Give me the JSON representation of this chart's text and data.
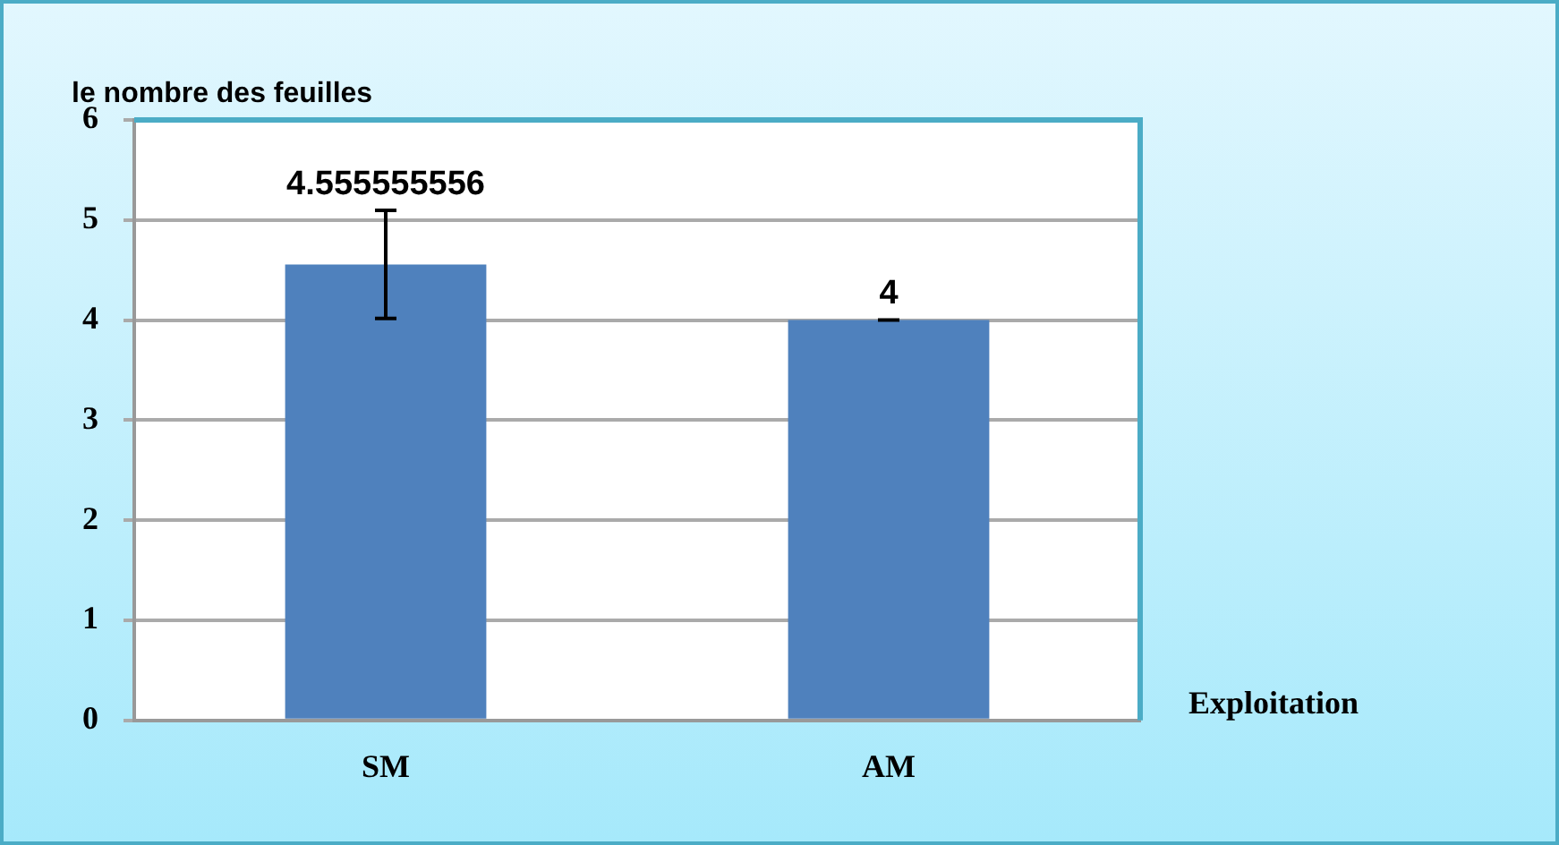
{
  "chart_data": {
    "type": "bar",
    "ylabel": "le nombre des feuilles",
    "xlabel": "Exploitation",
    "categories": [
      "SM",
      "AM"
    ],
    "values": [
      4.555555556,
      4
    ],
    "errors": [
      0.54,
      0
    ],
    "color": "#4f81bd",
    "ylim": [
      0,
      6
    ],
    "yticks": [
      0,
      1,
      2,
      3,
      4,
      5,
      6
    ],
    "grid": "y",
    "data_labels": true
  }
}
